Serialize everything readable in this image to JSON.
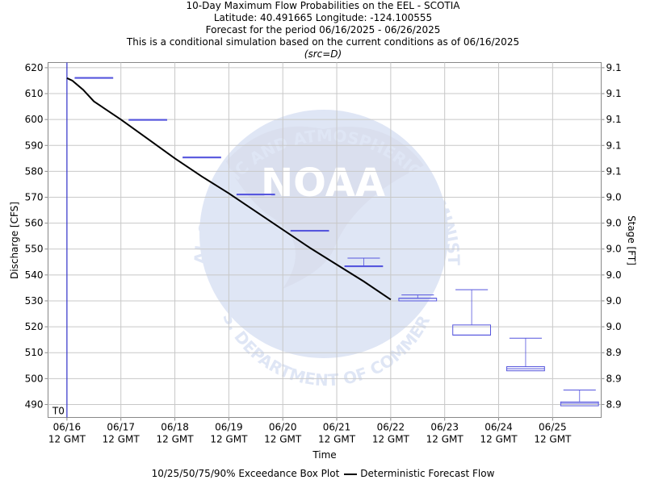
{
  "chart_data": {
    "type": "box_and_line",
    "title_lines": [
      "10-Day Maximum Flow Probabilities on the EEL - SCOTIA",
      "Latitude: 40.491665 Longitude: -124.100555",
      "Forecast for the period 06/16/2025 - 06/26/2025",
      "This is a conditional simulation based on the current conditions as of 06/16/2025"
    ],
    "source_note": "(src=D)",
    "xlabel": "Time",
    "ylabel_left": "Discharge [CFS]",
    "ylabel_right": "Stage [FT]",
    "ylim": [
      485,
      622
    ],
    "y_ticks": [
      490,
      500,
      510,
      520,
      530,
      540,
      550,
      560,
      570,
      580,
      590,
      600,
      610,
      620
    ],
    "right_ticks": [
      {
        "flow": 490,
        "label": "8.9"
      },
      {
        "flow": 500,
        "label": "8.9"
      },
      {
        "flow": 510,
        "label": "8.9"
      },
      {
        "flow": 520,
        "label": "9.0"
      },
      {
        "flow": 530,
        "label": "9.0"
      },
      {
        "flow": 540,
        "label": "9.0"
      },
      {
        "flow": 550,
        "label": "9.0"
      },
      {
        "flow": 560,
        "label": "9.0"
      },
      {
        "flow": 570,
        "label": "9.0"
      },
      {
        "flow": 580,
        "label": "9.1"
      },
      {
        "flow": 590,
        "label": "9.1"
      },
      {
        "flow": 600,
        "label": "9.1"
      },
      {
        "flow": 610,
        "label": "9.1"
      },
      {
        "flow": 620,
        "label": "9.1"
      }
    ],
    "xlim_days": [
      -0.35,
      9.9
    ],
    "x_ticks": [
      {
        "day": 0,
        "date": "06/16",
        "time": "12 GMT"
      },
      {
        "day": 1,
        "date": "06/17",
        "time": "12 GMT"
      },
      {
        "day": 2,
        "date": "06/18",
        "time": "12 GMT"
      },
      {
        "day": 3,
        "date": "06/19",
        "time": "12 GMT"
      },
      {
        "day": 4,
        "date": "06/20",
        "time": "12 GMT"
      },
      {
        "day": 5,
        "date": "06/21",
        "time": "12 GMT"
      },
      {
        "day": 6,
        "date": "06/22",
        "time": "12 GMT"
      },
      {
        "day": 7,
        "date": "06/23",
        "time": "12 GMT"
      },
      {
        "day": 8,
        "date": "06/24",
        "time": "12 GMT"
      },
      {
        "day": 9,
        "date": "06/25",
        "time": "12 GMT"
      }
    ],
    "t0": {
      "day": 0,
      "label": "T0"
    },
    "boxes": [
      {
        "center_day": 0.5,
        "p10": 616.2,
        "p25": 616.2,
        "p50": 616.2,
        "p75": 616.2,
        "p90": 616.2
      },
      {
        "center_day": 1.5,
        "p10": 600.0,
        "p25": 600.0,
        "p50": 600.0,
        "p75": 600.0,
        "p90": 600.0
      },
      {
        "center_day": 2.5,
        "p10": 585.5,
        "p25": 585.5,
        "p50": 585.5,
        "p75": 585.5,
        "p90": 585.5
      },
      {
        "center_day": 3.5,
        "p10": 571.2,
        "p25": 571.2,
        "p50": 571.2,
        "p75": 571.2,
        "p90": 571.2
      },
      {
        "center_day": 4.5,
        "p10": 557.2,
        "p25": 557.2,
        "p50": 557.2,
        "p75": 557.2,
        "p90": 557.2
      },
      {
        "center_day": 5.5,
        "p10": 543.5,
        "p25": 543.5,
        "p50": 543.5,
        "p75": 543.5,
        "p90": 546.5
      },
      {
        "center_day": 6.5,
        "p10": 530.0,
        "p25": 530.0,
        "p50": 531.0,
        "p75": 531.0,
        "p90": 532.3
      },
      {
        "center_day": 7.5,
        "p10": 516.8,
        "p25": 516.8,
        "p50": 516.8,
        "p75": 520.7,
        "p90": 534.3
      },
      {
        "center_day": 8.5,
        "p10": 503.0,
        "p25": 503.0,
        "p50": 503.8,
        "p75": 504.6,
        "p90": 515.6
      },
      {
        "center_day": 9.5,
        "p10": 489.5,
        "p25": 489.5,
        "p50": 490.5,
        "p75": 491.0,
        "p90": 495.6
      }
    ],
    "deterministic_flow": {
      "days": [
        0.0,
        0.1,
        0.3,
        0.5,
        1.0,
        1.5,
        2.0,
        2.5,
        3.0,
        3.5,
        4.0,
        4.5,
        5.0,
        5.5,
        6.0
      ],
      "values": [
        616,
        615,
        611.5,
        607,
        600,
        592.5,
        585,
        578,
        571.5,
        564.5,
        557.5,
        550.5,
        544,
        537.5,
        530.5
      ]
    },
    "colors": {
      "box": "#5555dd",
      "t0_line": "#3333cc",
      "flow_line": "#000000",
      "watermark": "#3f67c8"
    },
    "legend": {
      "box_label": "10/25/50/75/90% Exceedance Box Plot",
      "line_label": "Deterministic Forecast Flow"
    },
    "watermark": {
      "top_text": "NATIONAL OCEANIC AND ATMOSPHERIC ADMINISTRATION",
      "center_text": "NOAA",
      "bottom_text": "U.S. DEPARTMENT OF COMMERCE"
    }
  }
}
